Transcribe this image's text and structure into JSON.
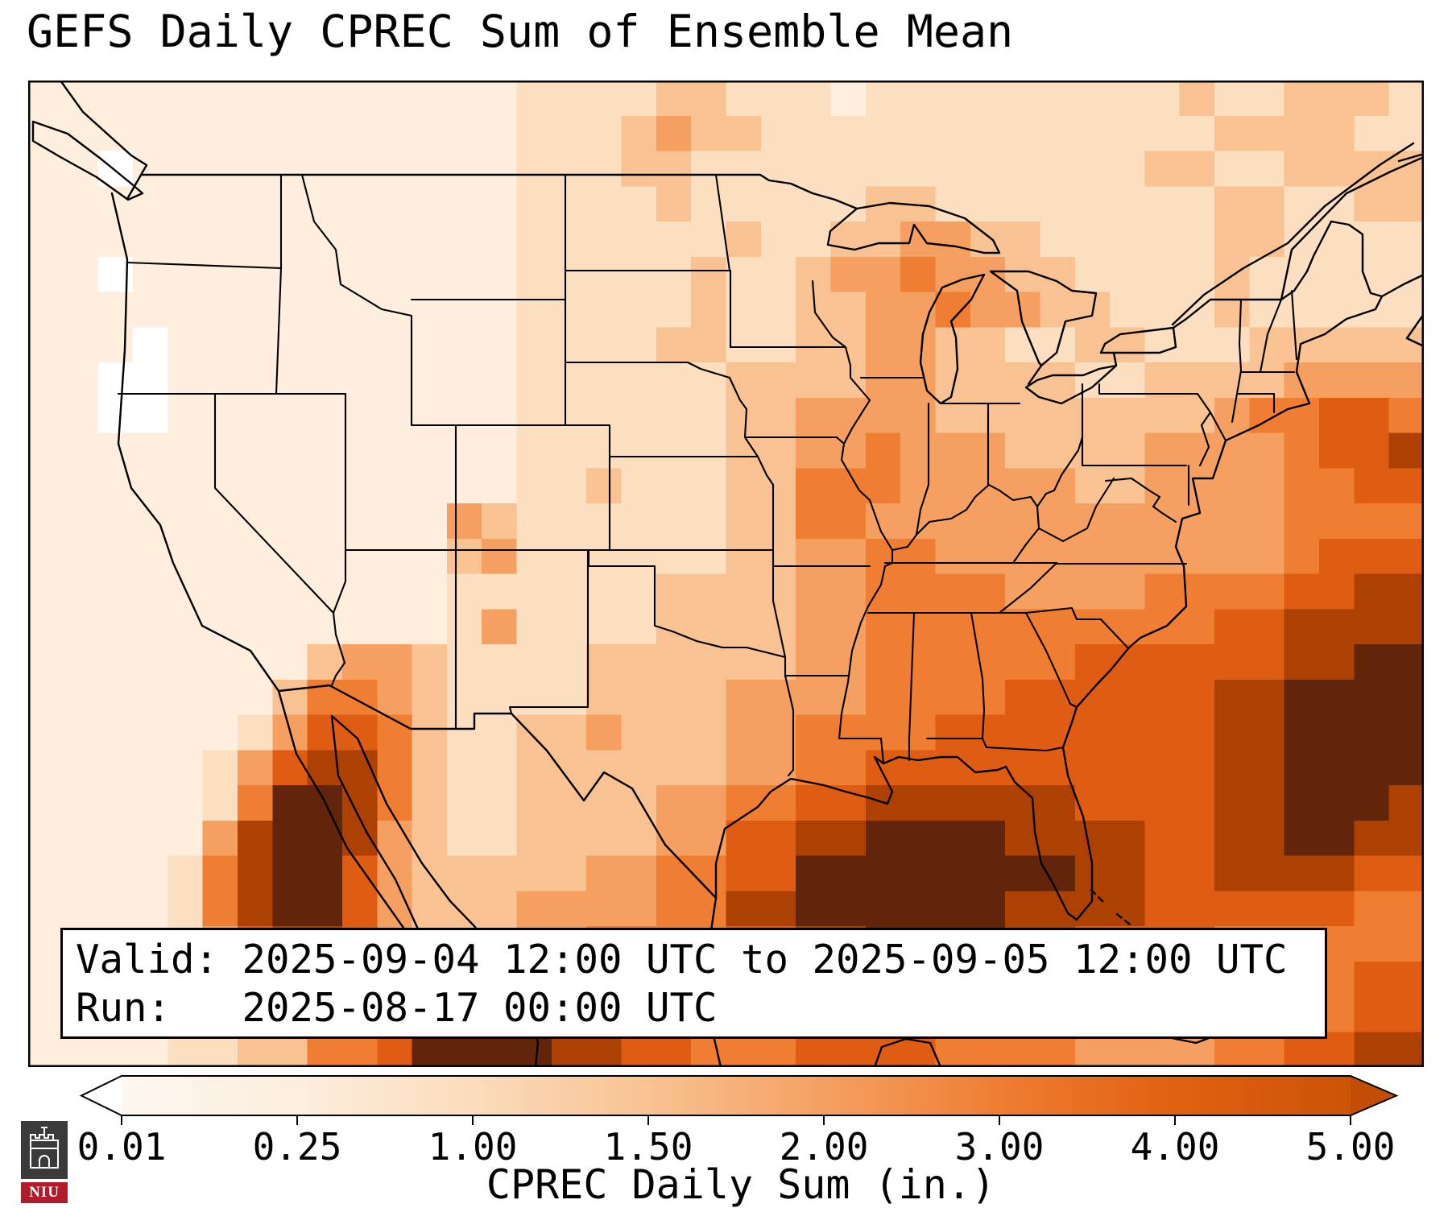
{
  "title": "GEFS Daily CPREC Sum of Ensemble Mean",
  "info_box": {
    "line1": "Valid: 2025-09-04 12:00 UTC to 2025-09-05 12:00 UTC",
    "line2": "Run:   2025-08-17 00:00 UTC"
  },
  "colorbar": {
    "label": "CPREC Daily Sum (in.)",
    "ticks": [
      "0.01",
      "0.25",
      "1.00",
      "1.50",
      "2.00",
      "3.00",
      "4.00",
      "5.00"
    ],
    "gradient_stops": [
      "#fdf7ef",
      "#fceede",
      "#fbdcbc",
      "#f8c292",
      "#f5a061",
      "#ef7d32",
      "#e1610f",
      "#cd5306"
    ],
    "left_extend_color": "#ffffff",
    "right_extend_color": "#c24d05"
  },
  "logo": {
    "text": "NIU",
    "background": "#3b3b3b",
    "band_color": "#b01c2c",
    "text_color": "#ffffff"
  },
  "chart_data": {
    "type": "heatmap",
    "title": "GEFS Daily CPREC Sum of Ensemble Mean",
    "colorbar_label": "CPREC Daily Sum (in.)",
    "units": "inches",
    "valid_period": "2025-09-04 12:00 UTC to 2025-09-05 12:00 UTC",
    "run": "2025-08-17 00:00 UTC",
    "levels_in": [
      0.01,
      0.25,
      1.0,
      1.5,
      2.0,
      3.0,
      4.0,
      5.0
    ],
    "level_colors": [
      "#ffffff",
      "#fdeedd",
      "#fbdfc0",
      "#f8c292",
      "#f5a061",
      "#ef7d32",
      "#df5d13",
      "#ad4103",
      "#63250a"
    ],
    "legend": "grid values are color-level indices 0-8; 0 = <0.01 in, 8 = >5.00 in",
    "grid": {
      "cols": 40,
      "rows": 28,
      "encoding": "comma list of count:level, expanded left-to-right per row, rows top-to-bottom",
      "rows_rle": [
        "14:1,4:2,2:3,3:2,1:1,9:2,1:3,2:2,3:3,1:2",
        "14:1,3:2,1:3,1:4,2:3,13:2,4:3,2:2",
        "2:1,1:0,11:1,3:2,2:3,13:2,2:3,2:2,4:3",
        "14:1,4:2,1:3,5:2,2:3,8:2,2:3,2:2,2:3",
        "14:1,6:2,1:3,2:2,2:3,2:4,2:3,5:2,2:3,4:2",
        "2:1,1:0,11:1,5:2,1:3,2:2,1:3,2:4,1:5,2:4,2:3,4:2,1:3,5:2",
        "14:1,5:2,1:3,2:2,2:3,2:4,1:5,2:4,2:3,3:2,1:3,5:2",
        "3:1,1:0,10:1,4:2,2:3,2:2,2:3,2:4,2:3,2:2,2:3,3:2,5:3",
        "2:1,2:0,10:1,4:2,2:2,4:3,2:4,4:3,2:2,4:3,4:4",
        "2:1,2:0,10:1,4:2,2:2,2:3,4:4,8:3,1:4,2:5,2:6,1:5",
        "14:1,4:2,2:2,2:3,2:4,1:5,3:4,4:3,4:4,1:5,2:6,1:7",
        "14:1,2:2,1:3,1:2,2:2,2:3,3:5,5:4,2:3,4:4,2:5,2:6",
        "12:1,1:4,1:3,6:2,2:3,2:5,12:4,4:5",
        "12:1,1:3,1:4,6:2,2:3,2:4,2:5,10:4,1:5,3:6",
        "12:1,6:2,4:3,2:4,4:5,4:4,4:5,2:6,2:7",
        "12:1,1:2,1:4,4:2,4:3,2:4,10:5,2:6,4:7",
        "8:1,1:3,2:4,1:3,4:2,6:3,2:4,6:5,6:6,2:7,2:8",
        "7:1,1:3,2:5,1:4,1:3,4:2,4:3,4:4,4:5,6:6,2:7,4:8",
        "6:1,1:2,1:4,2:6,1:5,1:3,2:2,2:3,1:4,1:3,2:3,2:4,4:5,8:6,2:7,4:8",
        "5:1,1:2,1:4,1:6,2:7,1:5,1:3,2:2,6:3,2:4,2:5,10:6,2:7,4:8",
        "5:1,1:2,1:5,2:8,1:7,1:5,1:3,2:2,4:3,2:4,2:5,2:6,6:7,4:6,2:7,3:8,1:7",
        "5:1,1:4,1:7,2:8,1:7,1:4,1:3,2:2,4:3,2:4,2:6,2:7,4:8,4:7,2:6,2:7,2:8,2:7",
        "4:1,1:2,1:5,1:7,2:8,1:6,1:4,1:3,4:3,2:4,2:5,2:6,8:8,2:7,2:6,4:7,2:6",
        "4:1,1:2,1:5,1:7,2:8,1:6,1:4,1:3,2:3,4:4,2:5,2:7,6:8,4:7,6:6,2:5",
        "4:1,1:2,1:4,1:6,2:7,1:6,1:4,1:3,2:3,2:4,4:5,2:6,2:7,4:8,2:7,4:6,6:5",
        "5:1,1:3,1:5,2:6,1:5,2:4,2:4,2:5,6:6,6:7,4:6,6:5,2:6",
        "4:1,2:2,2:4,2:6,2:7,4:8,2:7,6:6,2:7,4:6,4:5,2:4,2:5,2:6",
        "4:1,2:2,2:3,2:5,1:6,4:8,2:7,2:6,1:5,2:5,4:6,4:5,4:4,2:5,2:6,2:7"
      ]
    }
  }
}
